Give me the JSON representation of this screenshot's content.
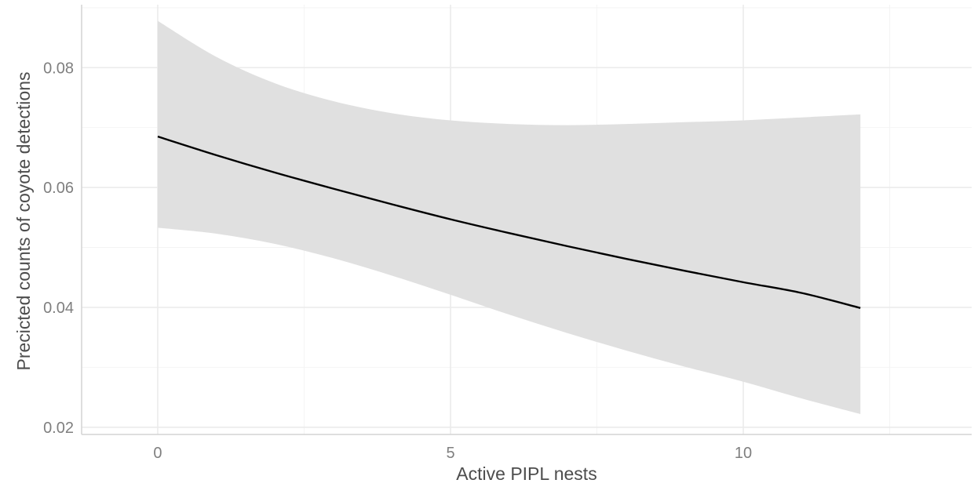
{
  "chart_data": {
    "type": "line",
    "title": "",
    "xlabel": "Active PIPL nests",
    "ylabel": "Precicted counts of coyote detections",
    "xlim": [
      -1.3,
      13.9
    ],
    "ylim": [
      0.0188,
      0.0905
    ],
    "x_ticks": [
      0,
      5,
      10
    ],
    "x_tick_labels": [
      "0",
      "5",
      "10"
    ],
    "y_ticks": [
      0.02,
      0.04,
      0.06,
      0.08
    ],
    "y_tick_labels": [
      "0.02",
      "0.04",
      "0.06",
      "0.08"
    ],
    "grid": true,
    "legend": "none",
    "series": [
      {
        "x": [
          0,
          1,
          2,
          3,
          4,
          5,
          6,
          7,
          8,
          9,
          10,
          11,
          12
        ],
        "y": [
          0.0685,
          0.0654,
          0.0625,
          0.0598,
          0.0572,
          0.0547,
          0.0524,
          0.0502,
          0.0481,
          0.0461,
          0.0442,
          0.0424,
          0.0399
        ],
        "lower": [
          0.0533,
          0.0523,
          0.0506,
          0.0482,
          0.0453,
          0.0421,
          0.0388,
          0.0357,
          0.0328,
          0.0301,
          0.0276,
          0.0248,
          0.0222
        ],
        "upper": [
          0.0878,
          0.0818,
          0.0774,
          0.0744,
          0.0724,
          0.0712,
          0.0706,
          0.0704,
          0.0706,
          0.0709,
          0.0712,
          0.0717,
          0.0722
        ],
        "color": "#000000",
        "band_color": "#e0e0e0"
      }
    ],
    "colors": {
      "grid_major": "#ebebeb",
      "grid_minor": "#f4f4f4",
      "axis_line": "#d4d4d4",
      "tick_text": "#7f7f7f",
      "title_text": "#4d4d4d"
    }
  }
}
